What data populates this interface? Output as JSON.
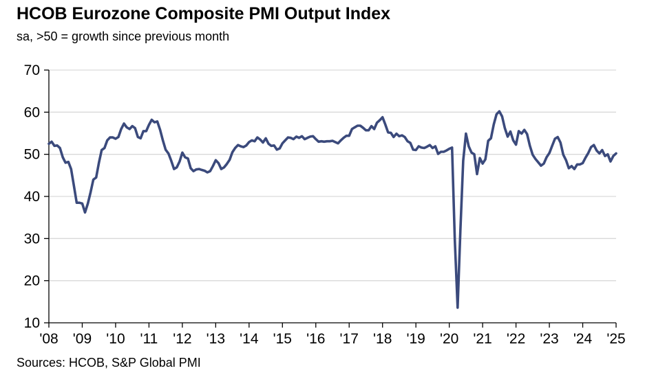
{
  "header": {
    "title": "HCOB Eurozone Composite PMI Output Index",
    "subtitle": "sa, >50 = growth  since previous  month"
  },
  "footer": {
    "source": "Sources: HCOB,  S&P Global  PMI"
  },
  "colors": {
    "series": "#3b4a7c",
    "grid": "#d9d9d9",
    "axis": "#000000"
  },
  "chart_data": {
    "type": "line",
    "title": "HCOB Eurozone Composite PMI Output Index",
    "subtitle": "sa, >50 = growth  since previous  month",
    "xlabel": "",
    "ylabel": "",
    "ylim": [
      10,
      70
    ],
    "yticks": [
      10,
      20,
      30,
      40,
      50,
      60,
      70
    ],
    "xlim": [
      2008.0,
      2025.0
    ],
    "xtick_labels": [
      "'08",
      "'09",
      "'10",
      "'11",
      "'12",
      "'13",
      "'14",
      "'15",
      "'16",
      "'17",
      "'18",
      "'19",
      "'20",
      "'21",
      "'22",
      "'23",
      "'24",
      "'25"
    ],
    "grid": "horizontal",
    "legend": "none",
    "series": [
      {
        "x": [
          2008.0,
          2008.083,
          2008.167,
          2008.25,
          2008.333,
          2008.417,
          2008.5,
          2008.583,
          2008.667,
          2008.75,
          2008.833,
          2008.917,
          2009.0,
          2009.083,
          2009.167,
          2009.25,
          2009.333,
          2009.417,
          2009.5,
          2009.583,
          2009.667,
          2009.75,
          2009.833,
          2009.917,
          2010.0,
          2010.083,
          2010.167,
          2010.25,
          2010.333,
          2010.417,
          2010.5,
          2010.583,
          2010.667,
          2010.75,
          2010.833,
          2010.917,
          2011.0,
          2011.083,
          2011.167,
          2011.25,
          2011.333,
          2011.417,
          2011.5,
          2011.583,
          2011.667,
          2011.75,
          2011.833,
          2011.917,
          2012.0,
          2012.083,
          2012.167,
          2012.25,
          2012.333,
          2012.417,
          2012.5,
          2012.583,
          2012.667,
          2012.75,
          2012.833,
          2012.917,
          2013.0,
          2013.083,
          2013.167,
          2013.25,
          2013.333,
          2013.417,
          2013.5,
          2013.583,
          2013.667,
          2013.75,
          2013.833,
          2013.917,
          2014.0,
          2014.083,
          2014.167,
          2014.25,
          2014.333,
          2014.417,
          2014.5,
          2014.583,
          2014.667,
          2014.75,
          2014.833,
          2014.917,
          2015.0,
          2015.083,
          2015.167,
          2015.25,
          2015.333,
          2015.417,
          2015.5,
          2015.583,
          2015.667,
          2015.75,
          2015.833,
          2015.917,
          2016.0,
          2016.083,
          2016.167,
          2016.25,
          2016.333,
          2016.417,
          2016.5,
          2016.583,
          2016.667,
          2016.75,
          2016.833,
          2016.917,
          2017.0,
          2017.083,
          2017.167,
          2017.25,
          2017.333,
          2017.417,
          2017.5,
          2017.583,
          2017.667,
          2017.75,
          2017.833,
          2017.917,
          2018.0,
          2018.083,
          2018.167,
          2018.25,
          2018.333,
          2018.417,
          2018.5,
          2018.583,
          2018.667,
          2018.75,
          2018.833,
          2018.917,
          2019.0,
          2019.083,
          2019.167,
          2019.25,
          2019.333,
          2019.417,
          2019.5,
          2019.583,
          2019.667,
          2019.75,
          2019.833,
          2019.917,
          2020.0,
          2020.083,
          2020.167,
          2020.25,
          2020.333,
          2020.417,
          2020.5,
          2020.583,
          2020.667,
          2020.75,
          2020.833,
          2020.917,
          2021.0,
          2021.083,
          2021.167,
          2021.25,
          2021.333,
          2021.417,
          2021.5,
          2021.583,
          2021.667,
          2021.75,
          2021.833,
          2021.917,
          2022.0,
          2022.083,
          2022.167,
          2022.25,
          2022.333,
          2022.417,
          2022.5,
          2022.583,
          2022.667,
          2022.75,
          2022.833,
          2022.917,
          2023.0,
          2023.083,
          2023.167,
          2023.25,
          2023.333,
          2023.417,
          2023.5,
          2023.583,
          2023.667,
          2023.75,
          2023.833,
          2023.917,
          2024.0,
          2024.083,
          2024.167,
          2024.25,
          2024.333,
          2024.417,
          2024.5,
          2024.583,
          2024.667,
          2024.75,
          2024.833,
          2024.917,
          2025.0
        ],
        "values": [
          52.5,
          53.0,
          52.0,
          52.1,
          51.5,
          49.3,
          48.0,
          48.2,
          46.5,
          42.5,
          38.5,
          38.5,
          38.3,
          36.2,
          38.3,
          41.0,
          44.0,
          44.5,
          48.0,
          51.0,
          51.5,
          53.3,
          54.0,
          54.0,
          53.7,
          54.1,
          56.0,
          57.3,
          56.4,
          56.0,
          56.7,
          56.2,
          54.1,
          53.8,
          55.5,
          55.5,
          57.0,
          58.2,
          57.6,
          57.8,
          55.8,
          53.3,
          51.1,
          50.2,
          48.5,
          46.5,
          46.9,
          48.3,
          50.4,
          49.3,
          49.0,
          46.7,
          46.0,
          46.4,
          46.5,
          46.3,
          46.1,
          45.7,
          46.0,
          47.2,
          48.6,
          47.9,
          46.5,
          46.9,
          47.7,
          48.7,
          50.5,
          51.5,
          52.2,
          51.9,
          51.7,
          52.1,
          52.9,
          53.3,
          53.1,
          54.0,
          53.5,
          52.8,
          53.8,
          52.5,
          52.0,
          52.1,
          51.1,
          51.4,
          52.6,
          53.3,
          54.0,
          53.9,
          53.6,
          54.2,
          53.9,
          54.3,
          53.6,
          53.9,
          54.2,
          54.3,
          53.6,
          53.0,
          53.1,
          53.0,
          53.1,
          53.1,
          53.2,
          52.9,
          52.6,
          53.3,
          53.9,
          54.4,
          54.4,
          56.0,
          56.4,
          56.8,
          56.8,
          56.3,
          55.7,
          55.7,
          56.7,
          56.0,
          57.5,
          58.1,
          58.8,
          57.1,
          55.2,
          55.1,
          54.1,
          54.9,
          54.3,
          54.5,
          54.1,
          53.1,
          52.7,
          51.1,
          51.0,
          51.9,
          51.6,
          51.5,
          51.8,
          52.2,
          51.5,
          51.9,
          50.1,
          50.6,
          50.6,
          50.9,
          51.3,
          51.6,
          29.7,
          13.6,
          31.9,
          48.5,
          54.9,
          51.9,
          50.4,
          50.0,
          45.3,
          49.1,
          47.8,
          48.8,
          53.2,
          53.8,
          57.1,
          59.5,
          60.2,
          59.0,
          56.2,
          54.2,
          55.4,
          53.3,
          52.3,
          55.5,
          54.9,
          55.8,
          54.8,
          52.0,
          49.9,
          48.9,
          48.1,
          47.3,
          47.8,
          49.3,
          50.3,
          52.0,
          53.7,
          54.1,
          52.8,
          49.9,
          48.6,
          46.7,
          47.2,
          46.5,
          47.6,
          47.6,
          47.9,
          49.2,
          50.3,
          51.7,
          52.2,
          50.9,
          50.2,
          51.0,
          49.6,
          50.0,
          48.3,
          49.6,
          50.2
        ]
      }
    ]
  }
}
